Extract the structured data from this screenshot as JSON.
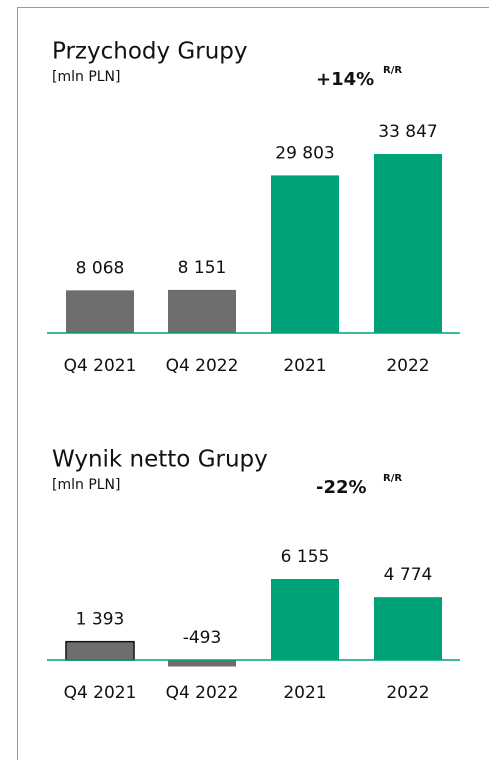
{
  "chart_data": [
    {
      "type": "bar",
      "title": "Przychody Grupy",
      "subtitle": "[mln PLN]",
      "change": "+14%",
      "change_unit": "R/R",
      "categories": [
        "Q4 2021",
        "Q4 2022",
        "2021",
        "2022"
      ],
      "values": [
        8068,
        8151,
        29803,
        33847
      ],
      "value_labels": [
        "8 068",
        "8 151",
        "29 803",
        "33 847"
      ],
      "colors": [
        "#6e6e6e",
        "#6e6e6e",
        "#00a27a",
        "#00a27a"
      ],
      "baseline_color": "#00a27a"
    },
    {
      "type": "bar",
      "title": "Wynik netto Grupy",
      "subtitle": "[mln PLN]",
      "change": "-22%",
      "change_unit": "R/R",
      "categories": [
        "Q4 2021",
        "Q4 2022",
        "2021",
        "2022"
      ],
      "values": [
        1393,
        -493,
        6155,
        4774
      ],
      "value_labels": [
        "1 393",
        "-493",
        "6 155",
        "4 774"
      ],
      "colors": [
        "#6e6e6e",
        "#6e6e6e",
        "#00a27a",
        "#00a27a"
      ],
      "baseline_color": "#00a27a"
    }
  ]
}
